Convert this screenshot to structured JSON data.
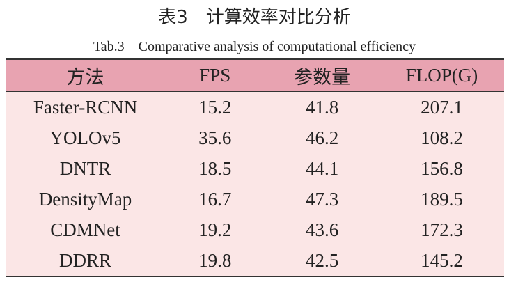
{
  "title": "表3　计算效率对比分析",
  "subtitle": "Tab.3　Comparative analysis of computational efficiency",
  "table": {
    "header": [
      "方法",
      "FPS",
      "参数量",
      "FLOP(G)"
    ],
    "rows": [
      [
        "Faster-RCNN",
        "15.2",
        "41.8",
        "207.1"
      ],
      [
        "YOLOv5",
        "35.6",
        "46.2",
        "108.2"
      ],
      [
        "DNTR",
        "18.5",
        "44.1",
        "156.8"
      ],
      [
        "DensityMap",
        "16.7",
        "47.3",
        "189.5"
      ],
      [
        "CDMNet",
        "19.2",
        "43.6",
        "172.3"
      ],
      [
        "DDRR",
        "19.8",
        "42.5",
        "145.2"
      ]
    ]
  }
}
